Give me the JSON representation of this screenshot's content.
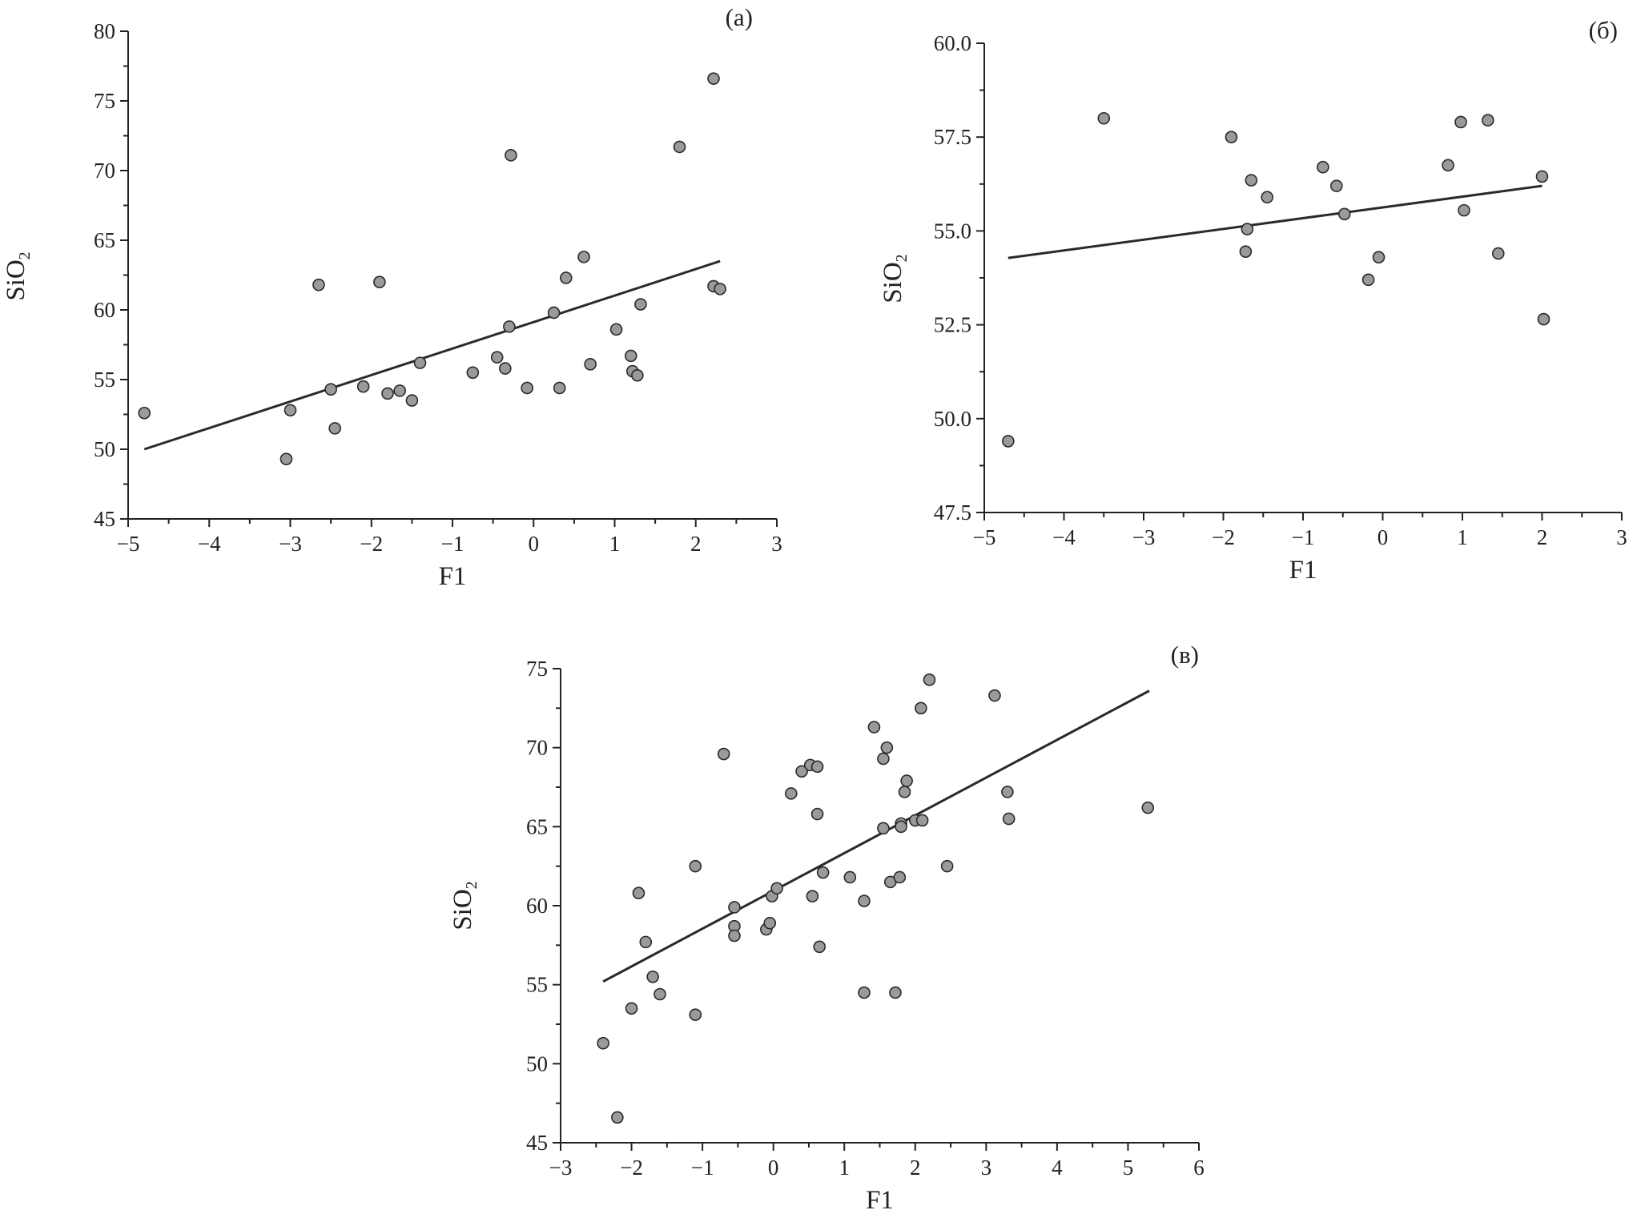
{
  "chart_data": [
    {
      "panel": "(а)",
      "type": "scatter",
      "xlabel": "F1",
      "ylabel": "SiO",
      "ylabel_sub": "2",
      "xlim": [
        -5,
        3
      ],
      "ylim": [
        45,
        80
      ],
      "xticks": [
        -5,
        -4,
        -3,
        -2,
        -1,
        0,
        1,
        2,
        3
      ],
      "yticks": [
        45,
        50,
        55,
        60,
        65,
        70,
        75,
        80
      ],
      "xtick_labels": [
        "−5",
        "−4",
        "−3",
        "−2",
        "−1",
        "0",
        "1",
        "2",
        "3"
      ],
      "ytick_labels": [
        "45",
        "50",
        "55",
        "60",
        "65",
        "70",
        "75",
        "80"
      ],
      "fit_line": {
        "x": [
          -4.8,
          2.3
        ],
        "y": [
          50.0,
          63.5
        ]
      },
      "points": [
        {
          "x": -4.8,
          "y": 52.6
        },
        {
          "x": -3.05,
          "y": 49.3
        },
        {
          "x": -3.0,
          "y": 52.8
        },
        {
          "x": -2.65,
          "y": 61.8
        },
        {
          "x": -2.5,
          "y": 54.3
        },
        {
          "x": -2.45,
          "y": 51.5
        },
        {
          "x": -2.1,
          "y": 54.5
        },
        {
          "x": -1.9,
          "y": 62.0
        },
        {
          "x": -1.8,
          "y": 54.0
        },
        {
          "x": -1.65,
          "y": 54.2
        },
        {
          "x": -1.5,
          "y": 53.5
        },
        {
          "x": -1.4,
          "y": 56.2
        },
        {
          "x": -0.75,
          "y": 55.5
        },
        {
          "x": -0.45,
          "y": 56.6
        },
        {
          "x": -0.35,
          "y": 55.8
        },
        {
          "x": -0.3,
          "y": 58.8
        },
        {
          "x": -0.28,
          "y": 71.1
        },
        {
          "x": -0.08,
          "y": 54.4
        },
        {
          "x": 0.25,
          "y": 59.8
        },
        {
          "x": 0.32,
          "y": 54.4
        },
        {
          "x": 0.4,
          "y": 62.3
        },
        {
          "x": 0.62,
          "y": 63.8
        },
        {
          "x": 0.7,
          "y": 56.1
        },
        {
          "x": 1.02,
          "y": 58.6
        },
        {
          "x": 1.2,
          "y": 56.7
        },
        {
          "x": 1.22,
          "y": 55.6
        },
        {
          "x": 1.28,
          "y": 55.3
        },
        {
          "x": 1.32,
          "y": 60.4
        },
        {
          "x": 1.8,
          "y": 71.7
        },
        {
          "x": 2.22,
          "y": 76.6
        },
        {
          "x": 2.22,
          "y": 61.7
        },
        {
          "x": 2.3,
          "y": 61.5
        }
      ]
    },
    {
      "panel": "(б)",
      "type": "scatter",
      "xlabel": "F1",
      "ylabel": "SiO",
      "ylabel_sub": "2",
      "xlim": [
        -5,
        3
      ],
      "ylim": [
        47.5,
        60.0
      ],
      "xticks": [
        -5,
        -4,
        -3,
        -2,
        -1,
        0,
        1,
        2,
        3
      ],
      "yticks": [
        47.5,
        50.0,
        52.5,
        55.0,
        57.5,
        60.0
      ],
      "xtick_labels": [
        "−5",
        "−4",
        "−3",
        "−2",
        "−1",
        "0",
        "1",
        "2",
        "3"
      ],
      "ytick_labels": [
        "47.5",
        "50.0",
        "52.5",
        "55.0",
        "57.5",
        "60.0"
      ],
      "fit_line": {
        "x": [
          -4.7,
          2.0
        ],
        "y": [
          54.28,
          56.2
        ]
      },
      "points": [
        {
          "x": -4.7,
          "y": 49.4
        },
        {
          "x": -3.5,
          "y": 58.0
        },
        {
          "x": -1.9,
          "y": 57.5
        },
        {
          "x": -1.7,
          "y": 55.05
        },
        {
          "x": -1.72,
          "y": 54.45
        },
        {
          "x": -1.65,
          "y": 56.35
        },
        {
          "x": -1.45,
          "y": 55.9
        },
        {
          "x": -0.75,
          "y": 56.7
        },
        {
          "x": -0.58,
          "y": 56.2
        },
        {
          "x": -0.48,
          "y": 55.45
        },
        {
          "x": -0.18,
          "y": 53.7
        },
        {
          "x": -0.05,
          "y": 54.3
        },
        {
          "x": 0.82,
          "y": 56.75
        },
        {
          "x": 0.98,
          "y": 57.9
        },
        {
          "x": 1.02,
          "y": 55.55
        },
        {
          "x": 1.32,
          "y": 57.95
        },
        {
          "x": 1.45,
          "y": 54.4
        },
        {
          "x": 2.0,
          "y": 56.45
        },
        {
          "x": 2.02,
          "y": 52.65
        }
      ]
    },
    {
      "panel": "(в)",
      "type": "scatter",
      "xlabel": "F1",
      "ylabel": "SiO",
      "ylabel_sub": "2",
      "xlim": [
        -3,
        6
      ],
      "ylim": [
        45,
        75
      ],
      "xticks": [
        -3,
        -2,
        -1,
        0,
        1,
        2,
        3,
        4,
        5,
        6
      ],
      "yticks": [
        45,
        50,
        55,
        60,
        65,
        70,
        75
      ],
      "xtick_labels": [
        "−3",
        "−2",
        "−1",
        "0",
        "1",
        "2",
        "3",
        "4",
        "5",
        "6"
      ],
      "ytick_labels": [
        "45",
        "50",
        "55",
        "60",
        "65",
        "70",
        "75"
      ],
      "fit_line": {
        "x": [
          -2.4,
          5.3
        ],
        "y": [
          55.2,
          73.6
        ]
      },
      "points": [
        {
          "x": -2.4,
          "y": 51.3
        },
        {
          "x": -2.2,
          "y": 46.6
        },
        {
          "x": -2.0,
          "y": 53.5
        },
        {
          "x": -1.9,
          "y": 60.8
        },
        {
          "x": -1.8,
          "y": 57.7
        },
        {
          "x": -1.7,
          "y": 55.5
        },
        {
          "x": -1.6,
          "y": 54.4
        },
        {
          "x": -1.1,
          "y": 62.5
        },
        {
          "x": -1.1,
          "y": 53.1
        },
        {
          "x": -0.7,
          "y": 69.6
        },
        {
          "x": -0.55,
          "y": 59.9
        },
        {
          "x": -0.55,
          "y": 58.7
        },
        {
          "x": -0.55,
          "y": 58.1
        },
        {
          "x": -0.1,
          "y": 58.5
        },
        {
          "x": -0.05,
          "y": 58.9
        },
        {
          "x": -0.02,
          "y": 60.6
        },
        {
          "x": 0.05,
          "y": 61.1
        },
        {
          "x": 0.25,
          "y": 67.1
        },
        {
          "x": 0.4,
          "y": 68.5
        },
        {
          "x": 0.52,
          "y": 68.9
        },
        {
          "x": 0.55,
          "y": 60.6
        },
        {
          "x": 0.62,
          "y": 68.8
        },
        {
          "x": 0.62,
          "y": 65.8
        },
        {
          "x": 0.65,
          "y": 57.4
        },
        {
          "x": 0.7,
          "y": 62.1
        },
        {
          "x": 1.08,
          "y": 61.8
        },
        {
          "x": 1.28,
          "y": 60.3
        },
        {
          "x": 1.28,
          "y": 54.5
        },
        {
          "x": 1.42,
          "y": 71.3
        },
        {
          "x": 1.55,
          "y": 64.9
        },
        {
          "x": 1.55,
          "y": 69.3
        },
        {
          "x": 1.6,
          "y": 70.0
        },
        {
          "x": 1.65,
          "y": 61.5
        },
        {
          "x": 1.72,
          "y": 54.5
        },
        {
          "x": 1.78,
          "y": 61.8
        },
        {
          "x": 1.8,
          "y": 65.2
        },
        {
          "x": 1.8,
          "y": 65.0
        },
        {
          "x": 1.85,
          "y": 67.2
        },
        {
          "x": 1.88,
          "y": 67.9
        },
        {
          "x": 2.0,
          "y": 65.4
        },
        {
          "x": 2.1,
          "y": 65.4
        },
        {
          "x": 2.08,
          "y": 72.5
        },
        {
          "x": 2.2,
          "y": 74.3
        },
        {
          "x": 2.45,
          "y": 62.5
        },
        {
          "x": 3.12,
          "y": 73.3
        },
        {
          "x": 3.3,
          "y": 67.2
        },
        {
          "x": 3.32,
          "y": 65.5
        },
        {
          "x": 5.28,
          "y": 66.2
        }
      ]
    }
  ]
}
